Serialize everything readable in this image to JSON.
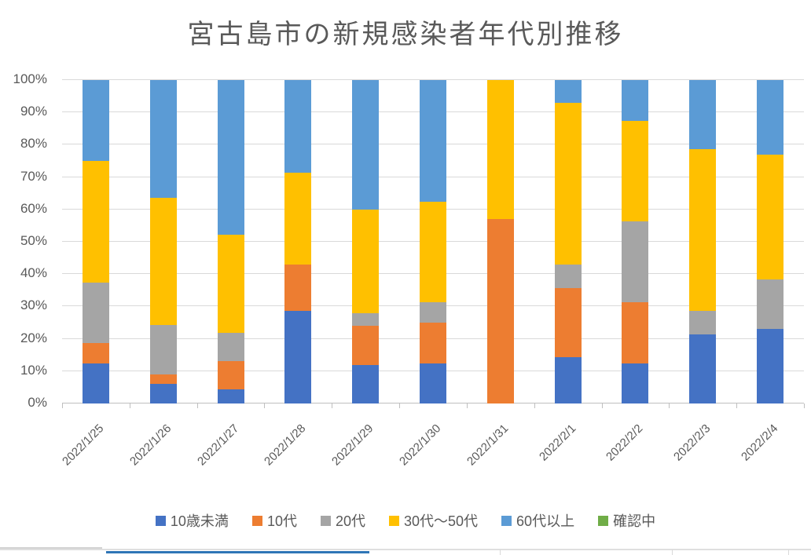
{
  "chart_data": {
    "type": "bar",
    "subtype": "stacked-100-percent-column",
    "title": "宮古島市の新規感染者年代別推移",
    "xlabel": "",
    "ylabel": "",
    "ylim": [
      0,
      100
    ],
    "yticks": [
      "0%",
      "10%",
      "20%",
      "30%",
      "40%",
      "50%",
      "60%",
      "70%",
      "80%",
      "90%",
      "100%"
    ],
    "grid": true,
    "legend_position": "bottom",
    "categories": [
      "2022/1/25",
      "2022/1/26",
      "2022/1/27",
      "2022/1/28",
      "2022/1/29",
      "2022/1/30",
      "2022/1/31",
      "2022/2/1",
      "2022/2/2",
      "2022/2/3",
      "2022/2/4"
    ],
    "series": [
      {
        "name": "10歳未満",
        "color": "#4472C4",
        "values": [
          12.5,
          6.06,
          4.35,
          28.57,
          12.0,
          12.5,
          0,
          14.29,
          12.5,
          21.43,
          23.08
        ]
      },
      {
        "name": "10代",
        "color": "#ED7D31",
        "values": [
          6.25,
          3.03,
          8.7,
          14.29,
          12.0,
          12.5,
          57.14,
          21.43,
          18.75,
          0,
          0
        ]
      },
      {
        "name": "20代",
        "color": "#A5A5A5",
        "values": [
          18.75,
          15.15,
          8.7,
          0,
          4.0,
          6.25,
          0,
          7.14,
          25.0,
          7.14,
          15.38
        ]
      },
      {
        "name": "30代〜50代",
        "color": "#FFC000",
        "values": [
          37.5,
          39.39,
          30.43,
          28.57,
          32.0,
          31.25,
          42.86,
          50.0,
          31.25,
          50.0,
          38.46
        ]
      },
      {
        "name": "60代以上",
        "color": "#5B9BD5",
        "values": [
          25.0,
          36.36,
          47.83,
          28.57,
          40.0,
          37.5,
          0,
          7.14,
          12.5,
          21.43,
          23.08
        ]
      },
      {
        "name": "確認中",
        "color": "#70AD47",
        "values": [
          0,
          0,
          0,
          0,
          0,
          0,
          0,
          0,
          0,
          0,
          0
        ]
      }
    ]
  },
  "text_colors": {
    "title": "#595959",
    "axis_labels": "#595959",
    "legend": "#595959"
  },
  "decoration": {
    "gridline_color": "#D9D9D9",
    "axis_line_color": "#BFBFBF",
    "sheet_blue_border_color": "#2E75B6",
    "sheet_gray_border_color": "#D9D9D9"
  }
}
